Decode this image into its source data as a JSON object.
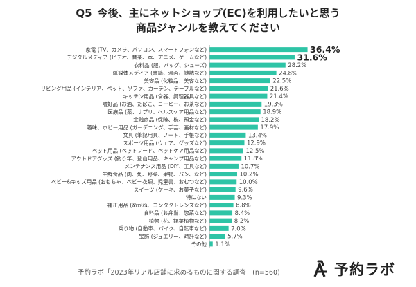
{
  "title": {
    "question": "Q5",
    "line1": "今後、主にネットショップ(EC)を利用したいと思う",
    "line2": "商品ジャンルを教えてください"
  },
  "footer": {
    "note": "予約ラボ「2023年リアル店舗に求めるものに関する調査」(n=560)",
    "brand": "予約ラボ"
  },
  "colors": {
    "bar": "#2ec4a6",
    "text": "#333333"
  },
  "chart_data": {
    "type": "bar",
    "orientation": "horizontal",
    "categories": [
      "家電 (TV、カメラ、パソコン、スマートフォンなど)",
      "デジタルメディア (ビデオ、音楽、本、アニメ、ゲームなど)",
      "衣料品 (服、バッグ、シューズ)",
      "紙媒体メディア (書籍、漫画、雑誌など)",
      "美容品 (化粧品、美容など)",
      "リビング用品 (インテリア、ペット、ソファ、カーテン、テーブルなど)",
      "キッチン用品 (食器、調理器具など)",
      "嗜好品 (お酒、たばこ、コーヒー、お茶など)",
      "医療品 (薬、サプリ、ヘルスケア用品など)",
      "金融商品 (保険、株、預金など)",
      "趣味、ホビー用品 (ガーデニング、手芸、画材など)",
      "文具 (筆記用具、ノート、手帳など)",
      "スポーツ用品 (ウェア、グッズなど)",
      "ペット用品 (ペットフード、ペットケア用品など)",
      "アウトドアグッズ (釣り竿、登山用品、キャンプ用品など)",
      "メンテナンス用品 (DIY、工具など)",
      "生鮮食品 (肉、魚、野菜、果物、パン、など)",
      "ベビー&キッズ用品 (おもちゃ、ベビー衣類、児童書、おむつなど)",
      "スイーツ (ケーキ、お菓子など)",
      "特にない",
      "補正用品 (めがね、コンタクトレンズなど)",
      "食料品 (お弁当、惣菜など)",
      "植物 (花、観葉植物など)",
      "乗り物 (自動車、バイク、自転車など)",
      "宝飾 (ジュエリー、時計など)",
      "その他"
    ],
    "values": [
      36.4,
      31.6,
      28.2,
      24.8,
      22.5,
      21.6,
      21.4,
      19.3,
      18.9,
      18.2,
      17.9,
      13.4,
      12.9,
      12.5,
      11.8,
      10.7,
      10.2,
      10.0,
      9.6,
      9.3,
      8.8,
      8.4,
      8.2,
      7.0,
      5.7,
      1.1
    ],
    "value_labels": [
      "36.4%",
      "31.6%",
      "28.2%",
      "24.8%",
      "22.5%",
      "21.6%",
      "21.4%",
      "19.3%",
      "18.9%",
      "18.2%",
      "17.9%",
      "13.4%",
      "12.9%",
      "12.5%",
      "11.8%",
      "10.7%",
      "10.2%",
      "10.0%",
      "9.6%",
      "9.3%",
      "8.8%",
      "8.4%",
      "8.2%",
      "7.0%",
      "5.7%",
      "1.1%"
    ],
    "highlighted": [
      0,
      1
    ],
    "unit": "%",
    "xlim": [
      0,
      40
    ],
    "grid": false,
    "legend": "none"
  }
}
